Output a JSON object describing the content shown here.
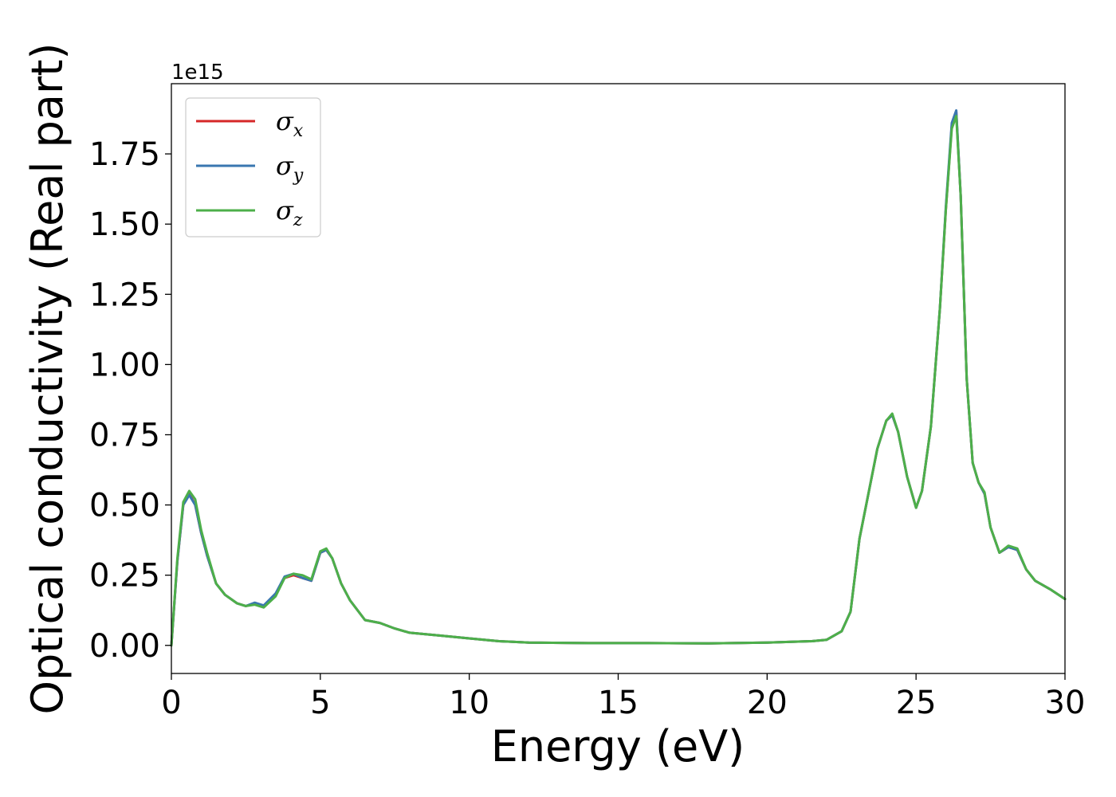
{
  "chart_data": {
    "type": "line",
    "xlabel": "Energy (eV)",
    "ylabel": "Optical conductivity (Real part)",
    "y_offset_label": "1e15",
    "xlim": [
      0,
      30
    ],
    "ylim": [
      -0.1,
      2.0
    ],
    "scale": 1000000000000000.0,
    "x_ticks": [
      0,
      5,
      10,
      15,
      20,
      25,
      30
    ],
    "x_tick_labels": [
      "0",
      "5",
      "10",
      "15",
      "20",
      "25",
      "30"
    ],
    "y_ticks": [
      0.0,
      0.25,
      0.5,
      0.75,
      1.0,
      1.25,
      1.5,
      1.75
    ],
    "y_tick_labels": [
      "0.00",
      "0.25",
      "0.50",
      "0.75",
      "1.00",
      "1.25",
      "1.50",
      "1.75"
    ],
    "grid": false,
    "legend_position": "top-left",
    "series": [
      {
        "name": "σ",
        "subscript": "x",
        "color": "#d62728",
        "x": [
          0,
          0.2,
          0.4,
          0.6,
          0.8,
          1.0,
          1.2,
          1.5,
          1.8,
          2.2,
          2.5,
          2.8,
          3.1,
          3.5,
          3.8,
          4.1,
          4.4,
          4.7,
          5.0,
          5.2,
          5.4,
          5.7,
          6.0,
          6.5,
          7.0,
          7.5,
          8.0,
          9.0,
          10.0,
          11.0,
          12.0,
          14.0,
          16.0,
          18.0,
          20.0,
          21.5,
          22.0,
          22.5,
          22.8,
          23.1,
          23.4,
          23.7,
          24.0,
          24.2,
          24.4,
          24.7,
          25.0,
          25.2,
          25.5,
          25.8,
          26.0,
          26.2,
          26.35,
          26.5,
          26.7,
          26.9,
          27.1,
          27.3,
          27.5,
          27.8,
          28.1,
          28.4,
          28.7,
          29.0,
          29.5,
          30.0
        ],
        "values": [
          0.0,
          0.3,
          0.5,
          0.54,
          0.5,
          0.4,
          0.32,
          0.22,
          0.18,
          0.15,
          0.14,
          0.15,
          0.14,
          0.18,
          0.24,
          0.25,
          0.24,
          0.23,
          0.33,
          0.34,
          0.31,
          0.22,
          0.16,
          0.09,
          0.08,
          0.06,
          0.045,
          0.035,
          0.025,
          0.015,
          0.01,
          0.008,
          0.008,
          0.007,
          0.01,
          0.015,
          0.02,
          0.05,
          0.12,
          0.38,
          0.54,
          0.7,
          0.8,
          0.82,
          0.76,
          0.6,
          0.49,
          0.55,
          0.78,
          1.2,
          1.55,
          1.85,
          1.9,
          1.6,
          0.95,
          0.65,
          0.58,
          0.54,
          0.42,
          0.33,
          0.35,
          0.34,
          0.27,
          0.23,
          0.2,
          0.165
        ]
      },
      {
        "name": "σ",
        "subscript": "y",
        "color": "#3a77b0",
        "x": [
          0,
          0.2,
          0.4,
          0.6,
          0.8,
          1.0,
          1.2,
          1.5,
          1.8,
          2.2,
          2.5,
          2.8,
          3.1,
          3.5,
          3.8,
          4.1,
          4.4,
          4.7,
          5.0,
          5.2,
          5.4,
          5.7,
          6.0,
          6.5,
          7.0,
          7.5,
          8.0,
          9.0,
          10.0,
          11.0,
          12.0,
          14.0,
          16.0,
          18.0,
          20.0,
          21.5,
          22.0,
          22.5,
          22.8,
          23.1,
          23.4,
          23.7,
          24.0,
          24.2,
          24.4,
          24.7,
          25.0,
          25.2,
          25.5,
          25.8,
          26.0,
          26.2,
          26.35,
          26.5,
          26.7,
          26.9,
          27.1,
          27.3,
          27.5,
          27.8,
          28.1,
          28.4,
          28.7,
          29.0,
          29.5,
          30.0
        ],
        "values": [
          0.0,
          0.3,
          0.5,
          0.535,
          0.5,
          0.4,
          0.32,
          0.22,
          0.18,
          0.15,
          0.14,
          0.152,
          0.142,
          0.185,
          0.245,
          0.255,
          0.24,
          0.23,
          0.33,
          0.34,
          0.31,
          0.22,
          0.16,
          0.09,
          0.08,
          0.06,
          0.045,
          0.035,
          0.025,
          0.015,
          0.01,
          0.008,
          0.008,
          0.007,
          0.01,
          0.015,
          0.02,
          0.05,
          0.12,
          0.38,
          0.54,
          0.7,
          0.8,
          0.82,
          0.76,
          0.6,
          0.49,
          0.55,
          0.78,
          1.2,
          1.56,
          1.86,
          1.905,
          1.6,
          0.95,
          0.65,
          0.58,
          0.54,
          0.42,
          0.33,
          0.35,
          0.34,
          0.27,
          0.23,
          0.2,
          0.165
        ]
      },
      {
        "name": "σ",
        "subscript": "z",
        "color": "#4daf4a",
        "x": [
          0,
          0.2,
          0.4,
          0.6,
          0.8,
          1.0,
          1.2,
          1.5,
          1.8,
          2.2,
          2.5,
          2.8,
          3.1,
          3.5,
          3.8,
          4.1,
          4.4,
          4.7,
          5.0,
          5.2,
          5.4,
          5.7,
          6.0,
          6.5,
          7.0,
          7.5,
          8.0,
          9.0,
          10.0,
          11.0,
          12.0,
          14.0,
          16.0,
          18.0,
          20.0,
          21.5,
          22.0,
          22.5,
          22.8,
          23.1,
          23.4,
          23.7,
          24.0,
          24.2,
          24.4,
          24.7,
          25.0,
          25.2,
          25.5,
          25.8,
          26.0,
          26.2,
          26.35,
          26.5,
          26.7,
          26.9,
          27.1,
          27.3,
          27.5,
          27.8,
          28.1,
          28.4,
          28.7,
          29.0,
          29.5,
          30.0
        ],
        "values": [
          0.0,
          0.31,
          0.51,
          0.55,
          0.52,
          0.41,
          0.33,
          0.22,
          0.18,
          0.15,
          0.14,
          0.145,
          0.135,
          0.175,
          0.24,
          0.255,
          0.25,
          0.235,
          0.335,
          0.345,
          0.31,
          0.22,
          0.16,
          0.09,
          0.08,
          0.06,
          0.045,
          0.035,
          0.025,
          0.015,
          0.01,
          0.008,
          0.008,
          0.007,
          0.01,
          0.015,
          0.02,
          0.05,
          0.12,
          0.38,
          0.54,
          0.7,
          0.8,
          0.825,
          0.76,
          0.6,
          0.49,
          0.55,
          0.78,
          1.2,
          1.55,
          1.84,
          1.885,
          1.6,
          0.95,
          0.65,
          0.58,
          0.545,
          0.42,
          0.33,
          0.355,
          0.345,
          0.27,
          0.23,
          0.2,
          0.165
        ]
      }
    ]
  }
}
